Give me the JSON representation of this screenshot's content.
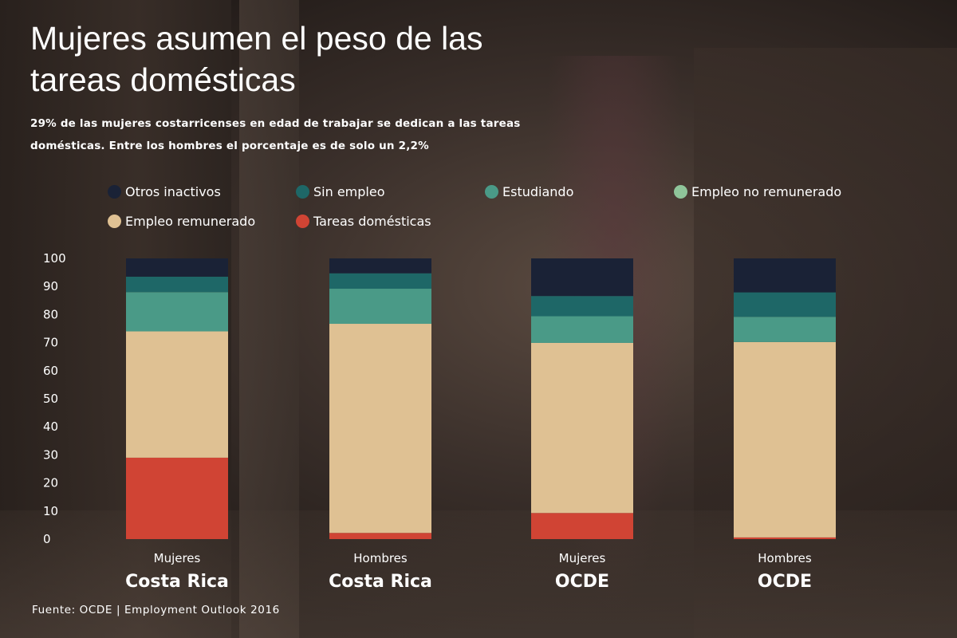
{
  "title": "Mujeres asumen el peso de las tareas domésticas",
  "subtitle": "29% de las mujeres costarricenses en edad de trabajar se dedican a las tareas domésticas. Entre los hombres el porcentaje es de solo un 2,2%",
  "source": "Fuente: OCDE | Employment Outlook 2016",
  "chart_data": {
    "type": "bar",
    "stacked": true,
    "ylim": [
      0,
      100
    ],
    "yticks": [
      0,
      10,
      20,
      30,
      40,
      50,
      60,
      70,
      80,
      90,
      100
    ],
    "grid": false,
    "legend_position": "top",
    "categories": [
      {
        "group": "Mujeres",
        "region": "Costa Rica"
      },
      {
        "group": "Hombres",
        "region": "Costa Rica"
      },
      {
        "group": "Mujeres",
        "region": "OCDE"
      },
      {
        "group": "Hombres",
        "region": "OCDE"
      }
    ],
    "series": [
      {
        "name": "Tareas domésticas",
        "color": "#d04434",
        "values": [
          29,
          2.2,
          9.3,
          0.6
        ]
      },
      {
        "name": "Empleo remunerado",
        "color": "#dfc193",
        "values": [
          45,
          74.5,
          60.6,
          69.6
        ]
      },
      {
        "name": "Empleo no remunerado",
        "color": "#8fc59a",
        "values": [
          0,
          0,
          0,
          0
        ]
      },
      {
        "name": "Estudiando",
        "color": "#4a9a87",
        "values": [
          14,
          12.5,
          9.5,
          9
        ]
      },
      {
        "name": "Sin empleo",
        "color": "#1e6767",
        "values": [
          5.5,
          5.5,
          7.2,
          8.7
        ]
      },
      {
        "name": "Otros inactivos",
        "color": "#1a2236",
        "values": [
          6.5,
          5.3,
          13.4,
          12.1
        ]
      }
    ],
    "legend_order": [
      "Otros inactivos",
      "Sin empleo",
      "Estudiando",
      "Empleo no remunerado",
      "Empleo remunerado",
      "Tareas domésticas"
    ]
  }
}
